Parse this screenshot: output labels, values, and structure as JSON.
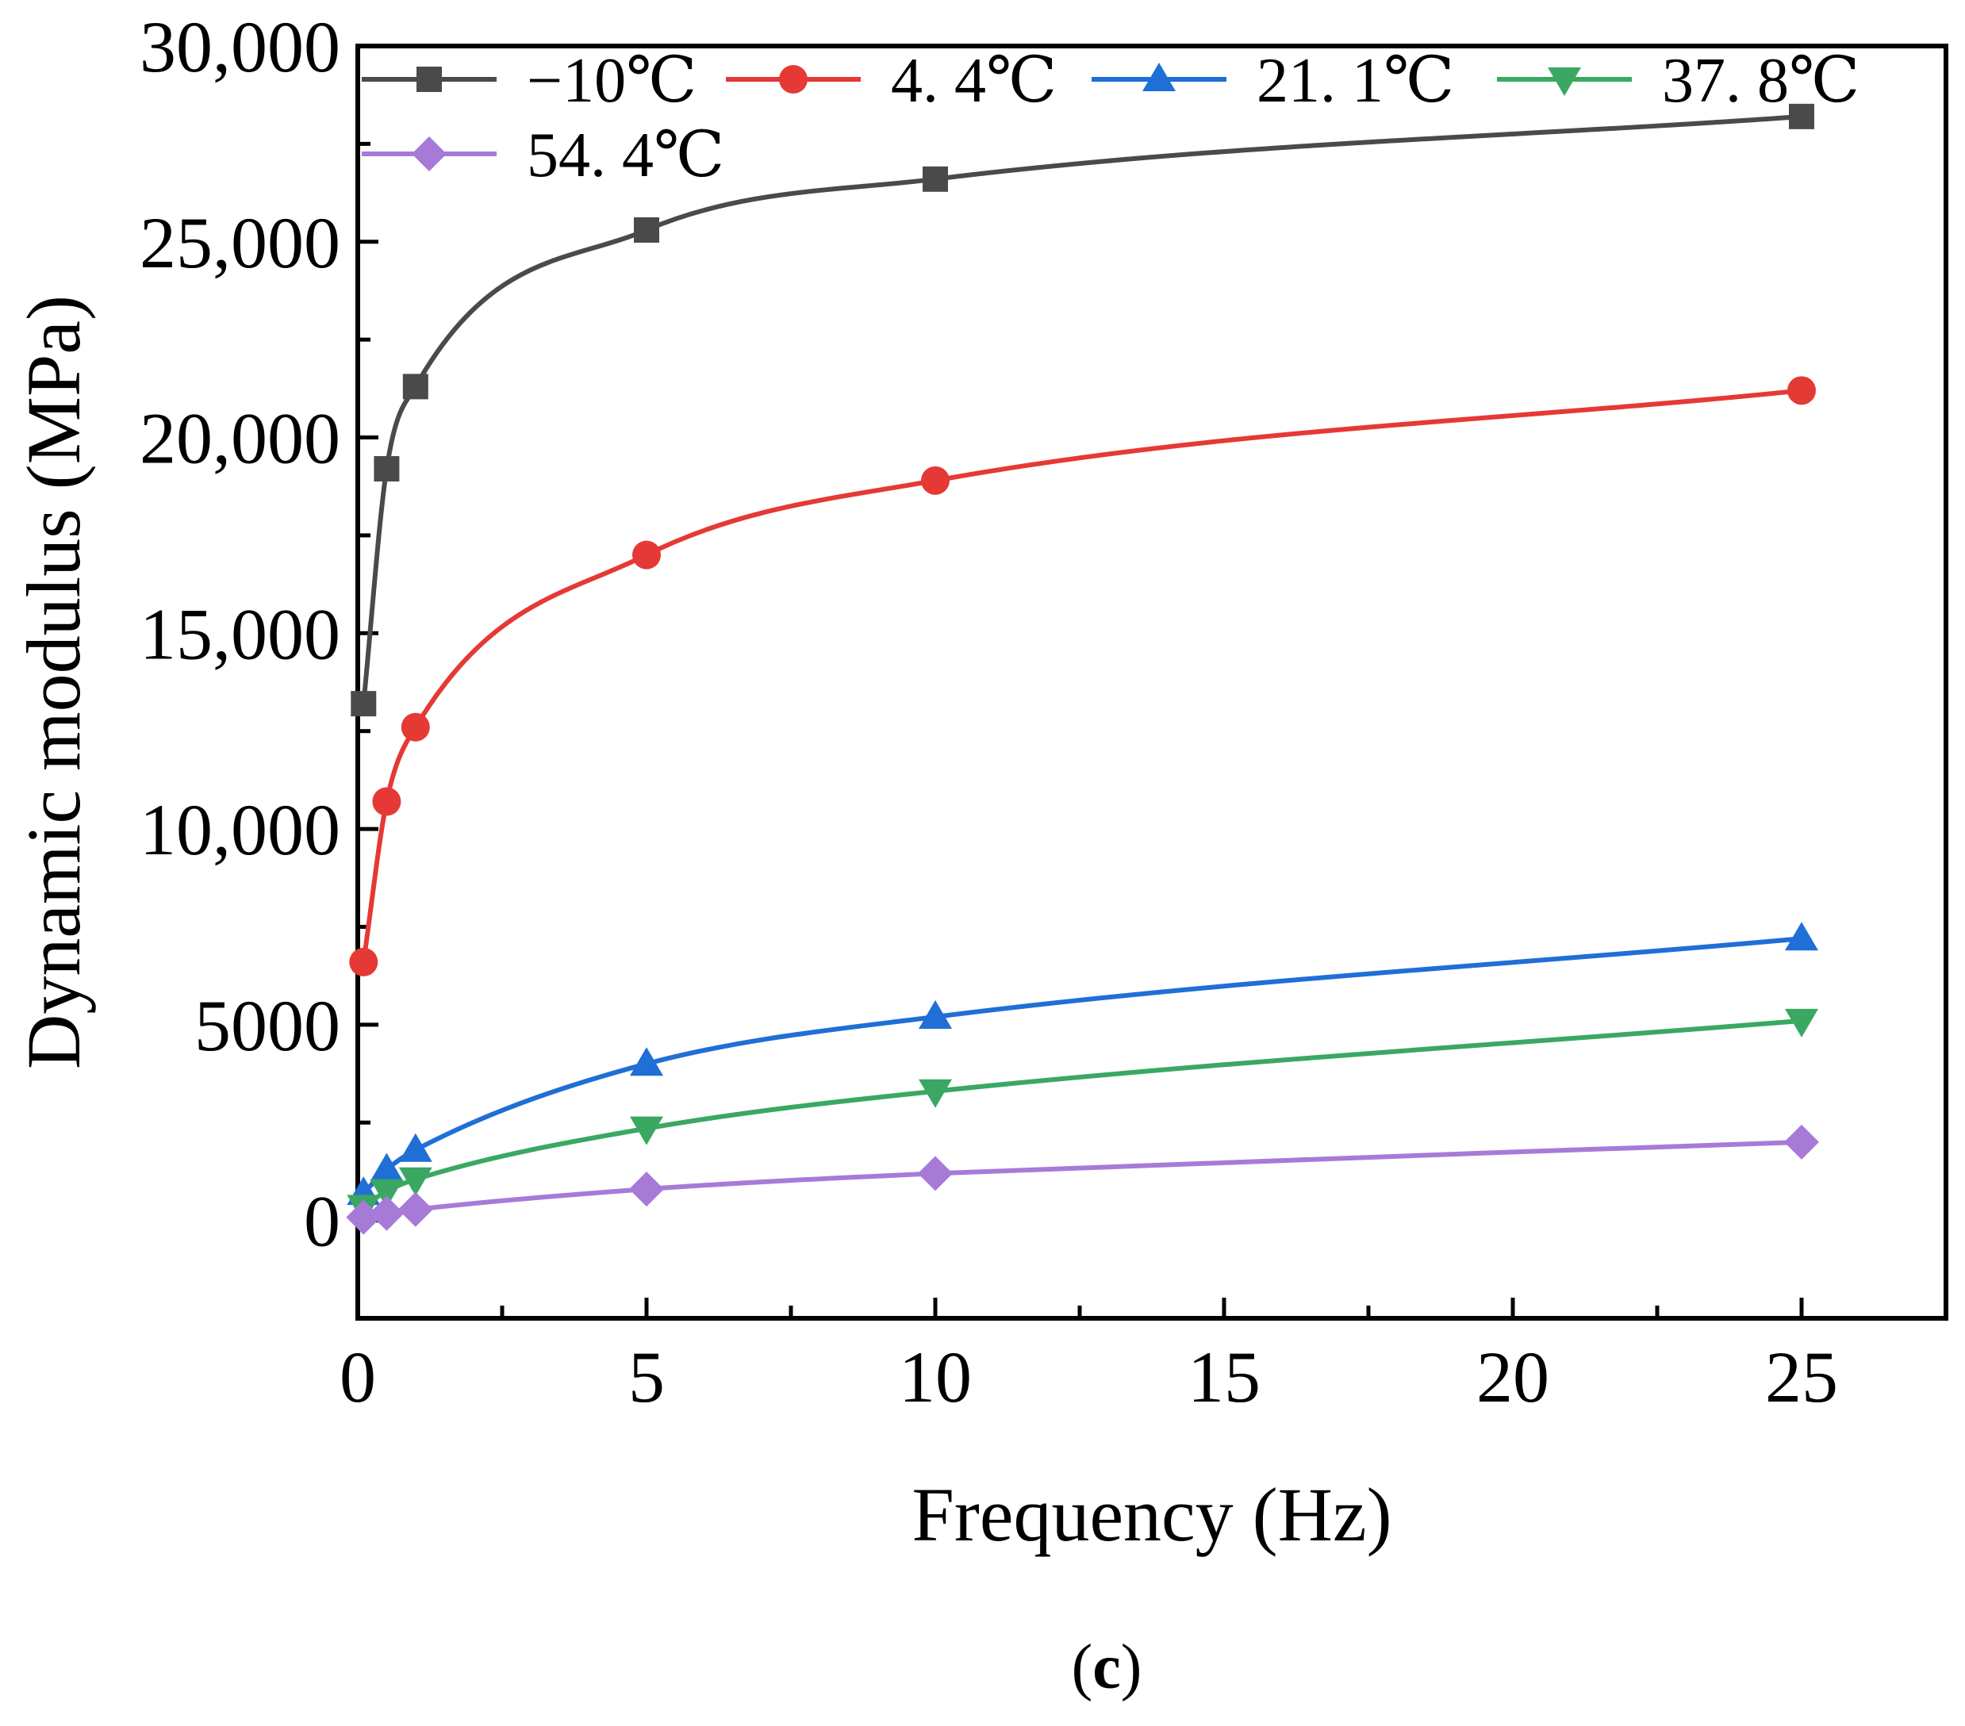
{
  "chart_data": {
    "type": "line",
    "title": "",
    "xlabel": "Frequency (Hz)",
    "ylabel": "Dynamic modulus (MPa)",
    "xlim": [
      0,
      27.5
    ],
    "ylim": [
      -2500,
      30000
    ],
    "xticks": [
      0,
      5,
      10,
      15,
      20,
      25
    ],
    "xtick_labels": [
      "0",
      "5",
      "10",
      "15",
      "20",
      "25"
    ],
    "yticks": [
      0,
      5000,
      10000,
      15000,
      20000,
      25000,
      30000
    ],
    "ytick_labels": [
      "0",
      "5000",
      "10,000",
      "15,000",
      "20,000",
      "25,000",
      "30,000"
    ],
    "grid": false,
    "legend_position": "top",
    "x": [
      0.1,
      0.5,
      1,
      5,
      10,
      25
    ],
    "series": [
      {
        "name": "−10℃",
        "color": "#4a4a4a",
        "marker": "square",
        "values": [
          13200,
          19200,
          21300,
          25300,
          26600,
          28200
        ]
      },
      {
        "name": "4. 4℃",
        "color": "#e53935",
        "marker": "circle",
        "values": [
          6600,
          10700,
          12600,
          17000,
          18900,
          21200
        ]
      },
      {
        "name": "21. 1℃",
        "color": "#1f6fd6",
        "marker": "triangle-up",
        "values": [
          700,
          1300,
          1800,
          4000,
          5200,
          7200
        ]
      },
      {
        "name": "37. 8℃",
        "color": "#3aa862",
        "marker": "triangle-down",
        "values": [
          350,
          750,
          1050,
          2350,
          3300,
          5100
        ]
      },
      {
        "name": "54. 4℃",
        "color": "#a87ad8",
        "marker": "diamond",
        "values": [
          80,
          180,
          280,
          800,
          1200,
          2000
        ]
      }
    ]
  },
  "caption": {
    "open": "(",
    "letter": "c",
    "close": ")"
  }
}
